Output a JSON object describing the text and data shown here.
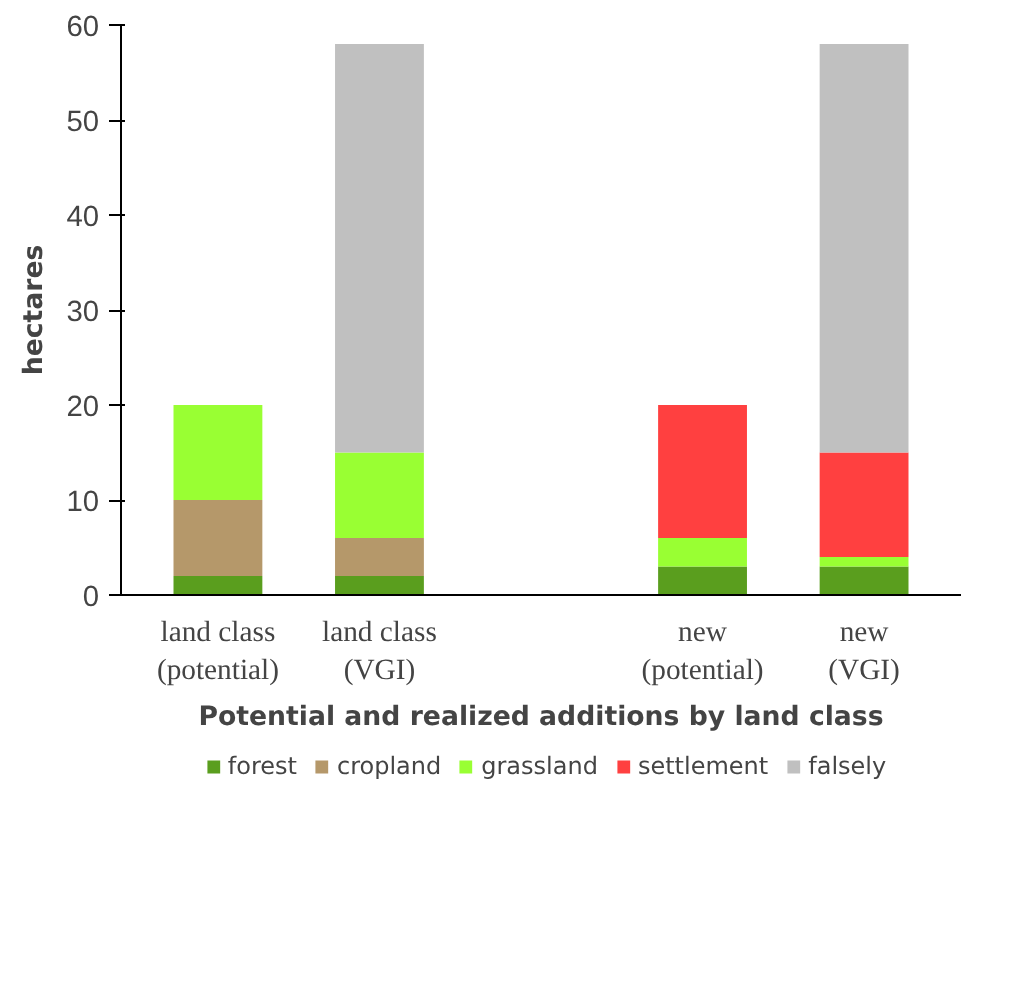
{
  "chart_data": {
    "type": "bar",
    "stacked": true,
    "xlabel": "Potential and realized additions by land class",
    "ylabel": "hectares",
    "categories": [
      "land class\n(potential)",
      "land class\n(VGI)",
      null,
      "new\n(potential)",
      "new\n(VGI)"
    ],
    "series": [
      {
        "name": "forest",
        "color": "#5a9e1e",
        "values": [
          2,
          2,
          null,
          3,
          3
        ]
      },
      {
        "name": "cropland",
        "color": "#b5986a",
        "values": [
          8,
          4,
          null,
          0,
          0
        ]
      },
      {
        "name": "grassland",
        "color": "#99ff33",
        "values": [
          10,
          9,
          null,
          3,
          1
        ]
      },
      {
        "name": "settlement",
        "color": "#ff4040",
        "values": [
          0,
          0,
          null,
          14,
          11
        ]
      },
      {
        "name": "falsely",
        "color": "#c0c0c0",
        "values": [
          0,
          43,
          null,
          0,
          43
        ]
      }
    ],
    "ylim": [
      0,
      60
    ],
    "yticks": [
      0,
      10,
      20,
      30,
      40,
      50,
      60
    ],
    "grid": false,
    "legend": "bottom"
  }
}
